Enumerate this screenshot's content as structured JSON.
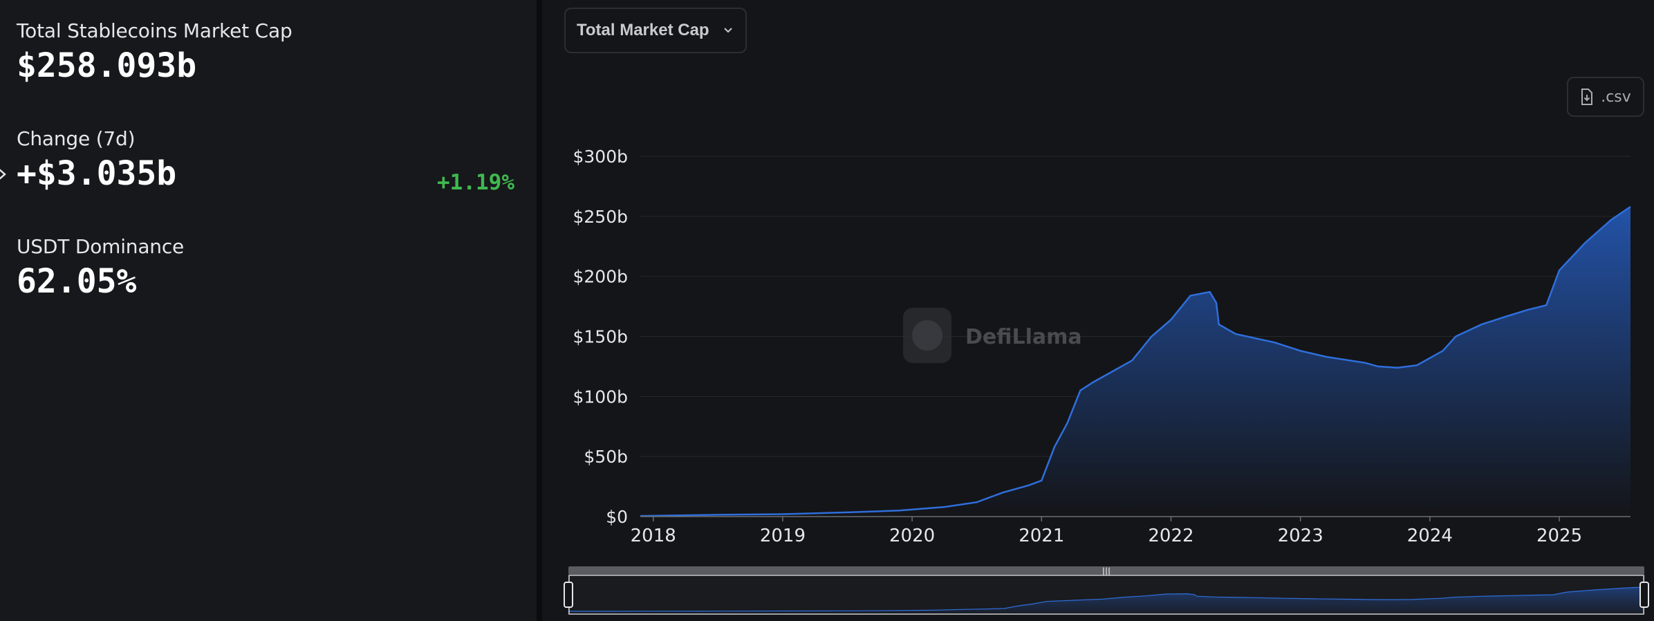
{
  "stats": {
    "market_cap_label": "Total Stablecoins Market Cap",
    "market_cap_value": "$258.093b",
    "change_label": "Change (7d)",
    "change_value": "+$3.035b",
    "change_pct": "+1.19%",
    "dominance_label": "USDT Dominance",
    "dominance_value": "62.05%"
  },
  "controls": {
    "metric_select_label": "Total Market Cap",
    "csv_label": ".csv"
  },
  "watermark": "DefiLlama",
  "colors": {
    "positive": "#3fb950",
    "line": "#2f6fdc",
    "background": "#141518"
  },
  "chart_data": {
    "type": "area",
    "title": "",
    "xlabel": "",
    "ylabel": "",
    "ylim": [
      0,
      300
    ],
    "xlim": [
      2017.9,
      2025.55
    ],
    "y_ticks": [
      {
        "value": 0,
        "label": "$0"
      },
      {
        "value": 50,
        "label": "$50b"
      },
      {
        "value": 100,
        "label": "$100b"
      },
      {
        "value": 150,
        "label": "$150b"
      },
      {
        "value": 200,
        "label": "$200b"
      },
      {
        "value": 250,
        "label": "$250b"
      },
      {
        "value": 300,
        "label": "$300b"
      }
    ],
    "x_ticks": [
      {
        "value": 2018,
        "label": "2018"
      },
      {
        "value": 2019,
        "label": "2019"
      },
      {
        "value": 2020,
        "label": "2020"
      },
      {
        "value": 2021,
        "label": "2021"
      },
      {
        "value": 2022,
        "label": "2022"
      },
      {
        "value": 2023,
        "label": "2023"
      },
      {
        "value": 2024,
        "label": "2024"
      },
      {
        "value": 2025,
        "label": "2025"
      }
    ],
    "grid": true,
    "series": [
      {
        "x": [
          2017.9,
          2018.5,
          2019.0,
          2019.5,
          2019.9,
          2020.25,
          2020.5,
          2020.7,
          2020.9,
          2021.0,
          2021.1,
          2021.2,
          2021.3,
          2021.4,
          2021.5,
          2021.7,
          2021.85,
          2022.0,
          2022.15,
          2022.3,
          2022.35,
          2022.37,
          2022.5,
          2022.8,
          2023.0,
          2023.2,
          2023.5,
          2023.6,
          2023.75,
          2023.9,
          2024.1,
          2024.2,
          2024.4,
          2024.6,
          2024.75,
          2024.9,
          2025.0,
          2025.2,
          2025.4,
          2025.55
        ],
        "y": [
          0.5,
          1.5,
          2,
          3.5,
          5,
          8,
          12,
          20,
          26,
          30,
          58,
          78,
          105,
          112,
          118,
          130,
          150,
          164,
          184,
          187,
          178,
          160,
          152,
          145,
          138,
          133,
          128,
          125,
          124,
          126,
          138,
          150,
          160,
          167,
          172,
          176,
          205,
          228,
          247,
          258
        ]
      }
    ]
  }
}
